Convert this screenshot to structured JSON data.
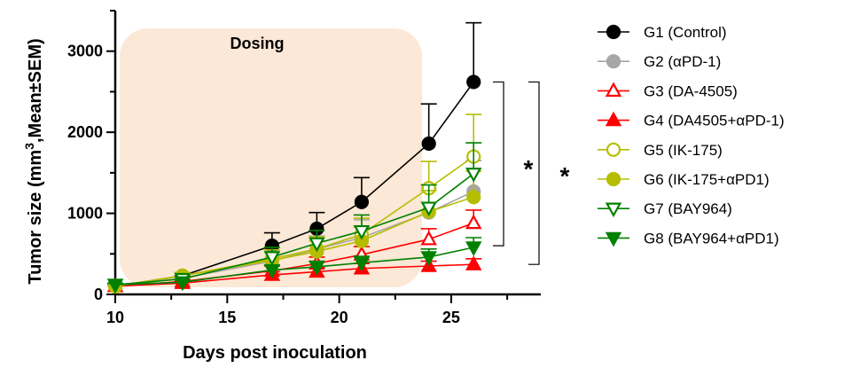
{
  "chart_data": {
    "type": "line",
    "title": "",
    "xlabel": "Days post inoculation",
    "ylabel_main": "Tumor size (mm",
    "ylabel_sup": "3",
    "ylabel_rest": ",Mean±SEM)",
    "xlim": [
      10,
      29
    ],
    "ylim": [
      0,
      3500
    ],
    "xticks": [
      10,
      15,
      20,
      25
    ],
    "yticks": [
      0,
      1000,
      2000,
      3000
    ],
    "shaded_region": {
      "label": "Dosing",
      "x_from": 10,
      "x_to": 23.7,
      "color": "#fce8d6"
    },
    "grid": false,
    "legend_position": "right",
    "significance": [
      {
        "label": "*",
        "y_top": 2620,
        "y_bottom": 600
      },
      {
        "label": "*",
        "y_top": 2620,
        "y_bottom": 370
      }
    ],
    "x": [
      10,
      13,
      17,
      19,
      21,
      24,
      26
    ],
    "series": [
      {
        "name": "G1 (Control)",
        "color": "#000000",
        "marker": "circle",
        "fill": true,
        "values": [
          100,
          230,
          600,
          810,
          1140,
          1860,
          2620
        ],
        "errors": [
          20,
          40,
          160,
          200,
          300,
          490,
          730
        ]
      },
      {
        "name": "G2 (αPD-1)",
        "color": "#a6a6a6",
        "marker": "circle",
        "fill": true,
        "values": [
          100,
          200,
          410,
          560,
          700,
          1010,
          1270
        ],
        "errors": [
          20,
          40,
          120,
          160,
          220,
          300,
          380
        ]
      },
      {
        "name": "G3 (DA-4505)",
        "color": "#ff0000",
        "marker": "triangle",
        "fill": false,
        "values": [
          100,
          160,
          290,
          380,
          490,
          680,
          880
        ],
        "errors": [
          15,
          25,
          60,
          80,
          100,
          130,
          160
        ]
      },
      {
        "name": "G4 (DA4505+αPD-1)",
        "color": "#ff0000",
        "marker": "triangle",
        "fill": true,
        "values": [
          100,
          140,
          240,
          280,
          320,
          350,
          370
        ],
        "errors": [
          15,
          20,
          40,
          50,
          60,
          60,
          70
        ]
      },
      {
        "name": "G5 (IK-175)",
        "color": "#b5bd00",
        "marker": "circle",
        "fill": false,
        "values": [
          100,
          230,
          440,
          560,
          740,
          1310,
          1700
        ],
        "errors": [
          20,
          40,
          110,
          150,
          200,
          330,
          520
        ]
      },
      {
        "name": "G6 (IK-175+αPD1)",
        "color": "#b5bd00",
        "marker": "circle",
        "fill": true,
        "values": [
          100,
          230,
          420,
          530,
          660,
          1020,
          1200
        ],
        "errors": [
          20,
          40,
          100,
          130,
          170,
          260,
          320
        ]
      },
      {
        "name": "G7 (BAY964)",
        "color": "#008000",
        "marker": "triangle-down",
        "fill": false,
        "values": [
          120,
          190,
          460,
          630,
          780,
          1070,
          1490
        ],
        "errors": [
          20,
          40,
          120,
          160,
          200,
          280,
          380
        ]
      },
      {
        "name": "G8 (BAY964+αPD1)",
        "color": "#008000",
        "marker": "triangle-down",
        "fill": true,
        "values": [
          120,
          150,
          300,
          340,
          390,
          460,
          580
        ],
        "errors": [
          15,
          25,
          60,
          70,
          80,
          100,
          120
        ]
      }
    ]
  }
}
